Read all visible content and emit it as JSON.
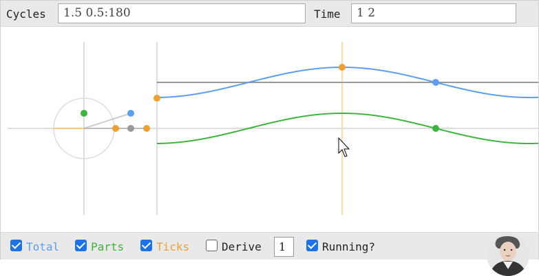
{
  "topbar": {
    "cycles_label": "Cycles",
    "cycles_value": "1.5 0.5:180",
    "time_label": "Time",
    "time_value": "1 2"
  },
  "controls": {
    "total_label": "Total",
    "parts_label": "Parts",
    "ticks_label": "Ticks",
    "derive_label": "Derive",
    "derive_value": "1",
    "running_label": "Running?",
    "total_checked": true,
    "parts_checked": true,
    "ticks_checked": true,
    "derive_checked": false,
    "running_checked": true
  },
  "colors": {
    "total": "#5b9ef0",
    "parts": "#3db53d",
    "ticks": "#f0a030",
    "axis": "#dddddd",
    "reference": "#999999",
    "checkbox": "#1a73e8"
  },
  "icons": [
    "cursor-arrow-icon",
    "portrait-avatar"
  ]
}
